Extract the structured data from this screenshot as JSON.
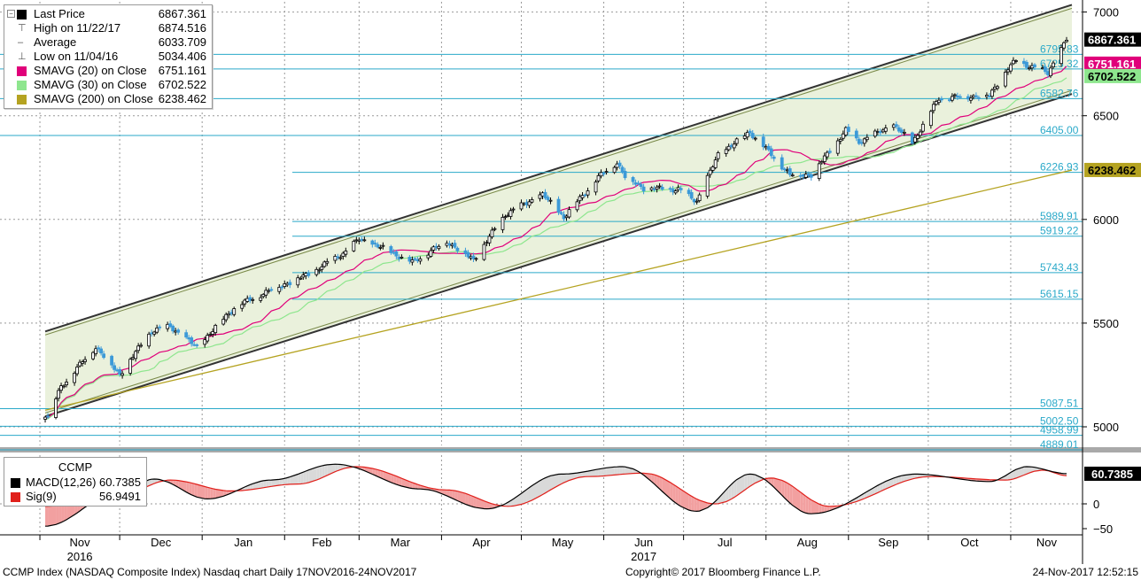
{
  "legend": {
    "last_price_label": "Last Price",
    "last_price_value": "6867.361",
    "high_label": "High on 11/22/17",
    "high_value": "6874.516",
    "average_label": "Average",
    "average_value": "6033.709",
    "low_label": "Low on 11/04/16",
    "low_value": "5034.406",
    "sma20_label": "SMAVG (20) on Close",
    "sma20_value": "6751.161",
    "sma30_label": "SMAVG (30) on Close",
    "sma30_value": "6702.522",
    "sma200_label": "SMAVG (200) on Close",
    "sma200_value": "6238.462"
  },
  "macd_legend": {
    "title": "CCMP",
    "macd_label": "MACD(12,26)",
    "macd_value": "60.7385",
    "sig_label": "Sig(9)",
    "sig_value": "56.9491"
  },
  "footer": {
    "left": "CCMP Index (NASDAQ Composite Index) Nasdaq chart  Daily 17NOV2016-24NOV2017",
    "center": "Copyright© 2017 Bloomberg Finance L.P.",
    "right": "24-Nov-2017 12:52:15"
  },
  "colors": {
    "candle_up": "#000000",
    "candle_down": "#3d9ad8",
    "sma20": "#e0007a",
    "sma30": "#8ee68e",
    "sma200": "#b5a321",
    "channel_fill": "#eaf1dc",
    "hline": "#2aa9c9",
    "macd": "#000000",
    "signal": "#e0201b",
    "hist_pos": "#d9d9d9",
    "hist_neg": "#f2a0a0"
  },
  "chart_data": {
    "type": "candlestick",
    "title": "CCMP Index (NASDAQ Composite Index) Nasdaq chart",
    "period": "Daily 17NOV2016-24NOV2017",
    "y_ticks": [
      5000,
      5500,
      6000,
      6500,
      7000
    ],
    "ylim": [
      4900,
      7035
    ],
    "month_labels": [
      "Nov",
      "Dec",
      "Jan",
      "Feb",
      "Mar",
      "Apr",
      "May",
      "Jun",
      "Jul",
      "Aug",
      "Sep",
      "Oct",
      "Nov"
    ],
    "year_labels": [
      {
        "label": "2016",
        "after_month": 0
      },
      {
        "label": "2017",
        "after_month": 7
      }
    ],
    "month_starts": [
      "2016-11-01",
      "2016-12-01",
      "2017-01-01",
      "2017-02-01",
      "2017-03-01",
      "2017-04-01",
      "2017-05-01",
      "2017-06-01",
      "2017-07-01",
      "2017-08-01",
      "2017-09-01",
      "2017-10-01",
      "2017-11-01"
    ],
    "last_price": 6867.361,
    "high_value": 6874.516,
    "low_value": 5034.406,
    "close_series": [
      {
        "date": "2016-11-03",
        "close": 5058
      },
      {
        "date": "2016-11-04",
        "close": 5046
      },
      {
        "date": "2016-11-09",
        "close": 5194
      },
      {
        "date": "2016-11-22",
        "close": 5386
      },
      {
        "date": "2016-12-01",
        "close": 5252
      },
      {
        "date": "2016-12-13",
        "close": 5463
      },
      {
        "date": "2016-12-20",
        "close": 5484
      },
      {
        "date": "2016-12-30",
        "close": 5383
      },
      {
        "date": "2017-01-13",
        "close": 5575
      },
      {
        "date": "2017-01-26",
        "close": 5656
      },
      {
        "date": "2017-02-10",
        "close": 5735
      },
      {
        "date": "2017-02-24",
        "close": 5845
      },
      {
        "date": "2017-03-01",
        "close": 5905
      },
      {
        "date": "2017-03-10",
        "close": 5861
      },
      {
        "date": "2017-03-21",
        "close": 5793
      },
      {
        "date": "2017-04-03",
        "close": 5895
      },
      {
        "date": "2017-04-13",
        "close": 5805
      },
      {
        "date": "2017-04-25",
        "close": 6025
      },
      {
        "date": "2017-05-09",
        "close": 6120
      },
      {
        "date": "2017-05-17",
        "close": 6011
      },
      {
        "date": "2017-05-30",
        "close": 6203
      },
      {
        "date": "2017-06-06",
        "close": 6275
      },
      {
        "date": "2017-06-09",
        "close": 6207
      },
      {
        "date": "2017-06-16",
        "close": 6151
      },
      {
        "date": "2017-06-29",
        "close": 6144
      },
      {
        "date": "2017-07-06",
        "close": 6089
      },
      {
        "date": "2017-07-14",
        "close": 6312
      },
      {
        "date": "2017-07-26",
        "close": 6422
      },
      {
        "date": "2017-08-10",
        "close": 6216
      },
      {
        "date": "2017-08-18",
        "close": 6216
      },
      {
        "date": "2017-08-31",
        "close": 6429
      },
      {
        "date": "2017-09-05",
        "close": 6375
      },
      {
        "date": "2017-09-18",
        "close": 6454
      },
      {
        "date": "2017-09-25",
        "close": 6370
      },
      {
        "date": "2017-10-05",
        "close": 6585
      },
      {
        "date": "2017-10-24",
        "close": 6598
      },
      {
        "date": "2017-10-31",
        "close": 6728
      },
      {
        "date": "2017-11-03",
        "close": 6764
      },
      {
        "date": "2017-11-15",
        "close": 6707
      },
      {
        "date": "2017-11-22",
        "close": 6867
      }
    ],
    "series": [
      {
        "name": "SMAVG (20) on Close",
        "last": 6751.161
      },
      {
        "name": "SMAVG (30) on Close",
        "last": 6702.522
      },
      {
        "name": "SMAVG (200) on Close",
        "last": 6238.462,
        "points": [
          {
            "date": "2016-11-03",
            "value": 5080
          },
          {
            "date": "2017-11-24",
            "value": 6238
          }
        ]
      }
    ],
    "channel": {
      "upper": [
        {
          "date": "2016-11-03",
          "value": 5460
        },
        {
          "date": "2017-11-24",
          "value": 7035
        }
      ],
      "lower": [
        {
          "date": "2016-11-03",
          "value": 5050
        },
        {
          "date": "2017-11-24",
          "value": 6605
        }
      ]
    },
    "price_levels": [
      "6795.83",
      "6725.32",
      "6582.76",
      "6405.00",
      "6226.93",
      "5989.91",
      "5919.22",
      "5743.43",
      "5615.15",
      "5087.51",
      "5002.50",
      "4958.99",
      "4889.01"
    ],
    "price_tags": [
      {
        "label": "6867.361",
        "value": 6867.361,
        "color": "#000000",
        "text_color": "#ffffff"
      },
      {
        "label": "6751.161",
        "value": 6751.161,
        "color": "#e0007a",
        "text_color": "#ffffff"
      },
      {
        "label": "6702.522",
        "value": 6702.522,
        "color": "#8ee68e",
        "text_color": "#000000"
      },
      {
        "label": "6238.462",
        "value": 6238.462,
        "color": "#b5a321",
        "text_color": "#000000"
      }
    ],
    "macd": {
      "y_ticks": [
        0,
        -50
      ],
      "ylim": [
        -60,
        110
      ],
      "macd_last": 60.7385,
      "signal_last": 56.9491,
      "tag_label": "60.7385",
      "macd_points": [
        {
          "date": "2016-11-03",
          "value": -45
        },
        {
          "date": "2016-11-30",
          "value": 20
        },
        {
          "date": "2016-12-14",
          "value": 50
        },
        {
          "date": "2017-01-03",
          "value": 10
        },
        {
          "date": "2017-01-27",
          "value": 48
        },
        {
          "date": "2017-02-20",
          "value": 80
        },
        {
          "date": "2017-03-24",
          "value": 30
        },
        {
          "date": "2017-04-18",
          "value": -10
        },
        {
          "date": "2017-05-16",
          "value": 60
        },
        {
          "date": "2017-06-08",
          "value": 75
        },
        {
          "date": "2017-07-06",
          "value": -15
        },
        {
          "date": "2017-07-26",
          "value": 60
        },
        {
          "date": "2017-08-18",
          "value": -20
        },
        {
          "date": "2017-09-26",
          "value": 60
        },
        {
          "date": "2017-10-24",
          "value": 45
        },
        {
          "date": "2017-11-07",
          "value": 75
        },
        {
          "date": "2017-11-22",
          "value": 61
        }
      ],
      "signal_points": [
        {
          "date": "2016-11-03",
          "value": -5
        },
        {
          "date": "2016-12-02",
          "value": 20
        },
        {
          "date": "2016-12-20",
          "value": 48
        },
        {
          "date": "2017-01-12",
          "value": 26
        },
        {
          "date": "2017-02-06",
          "value": 40
        },
        {
          "date": "2017-02-28",
          "value": 75
        },
        {
          "date": "2017-04-03",
          "value": 28
        },
        {
          "date": "2017-04-26",
          "value": -5
        },
        {
          "date": "2017-05-26",
          "value": 55
        },
        {
          "date": "2017-06-16",
          "value": 62
        },
        {
          "date": "2017-07-13",
          "value": 0
        },
        {
          "date": "2017-08-03",
          "value": 52
        },
        {
          "date": "2017-08-25",
          "value": -5
        },
        {
          "date": "2017-10-02",
          "value": 55
        },
        {
          "date": "2017-10-30",
          "value": 48
        },
        {
          "date": "2017-11-13",
          "value": 68
        },
        {
          "date": "2017-11-22",
          "value": 57
        }
      ]
    }
  }
}
